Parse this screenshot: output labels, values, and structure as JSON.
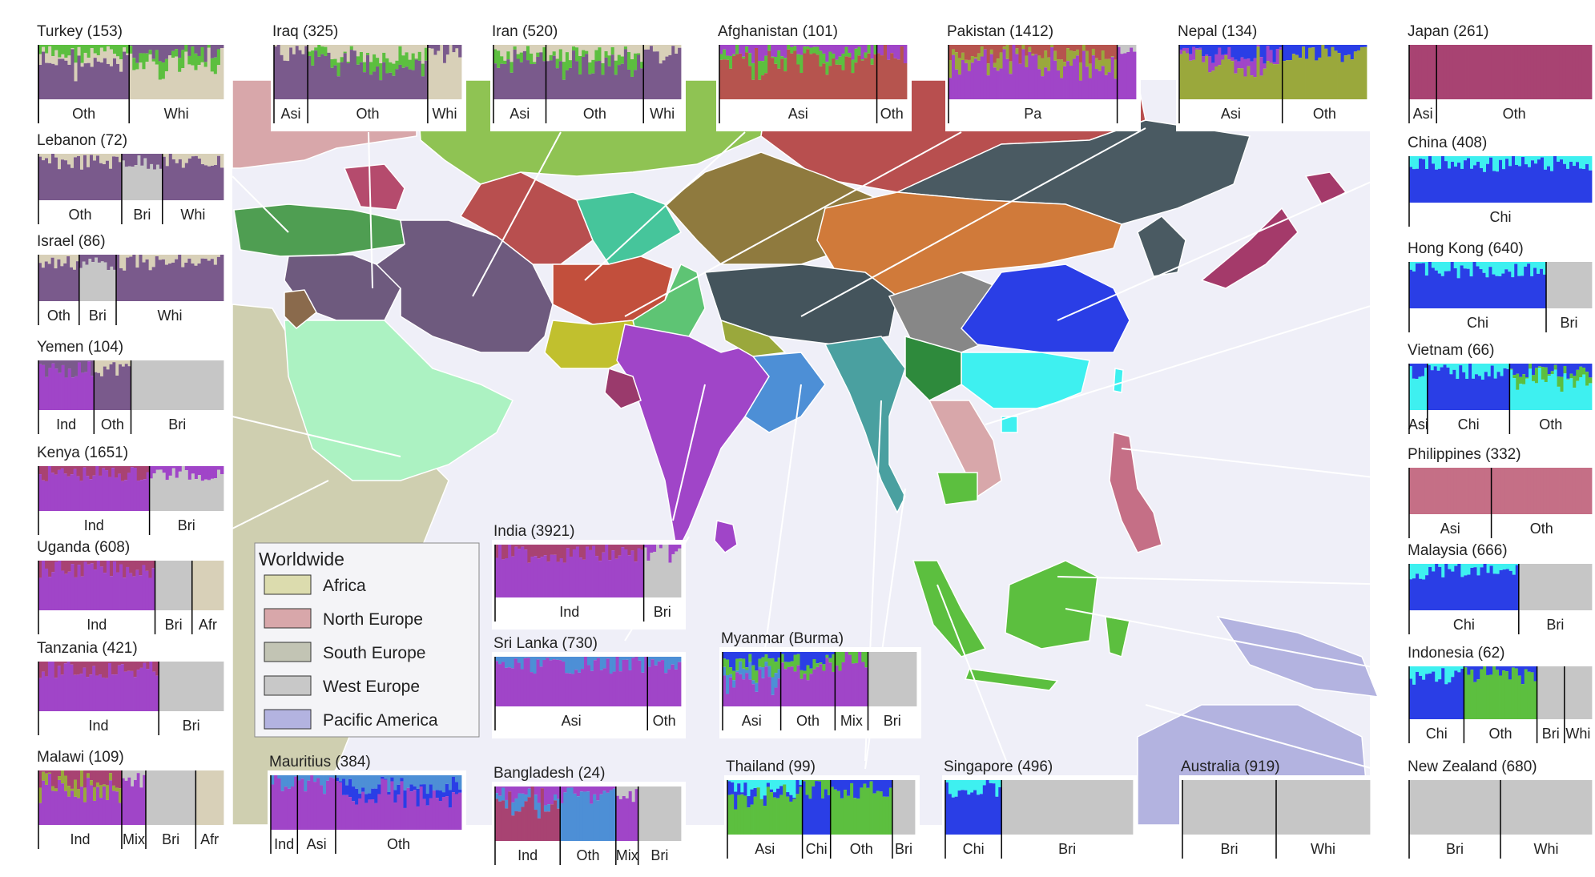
{
  "chart_data": {
    "type": "stacked-bar-grid",
    "legend": {
      "title": "Worldwide",
      "placement": "center-left",
      "items": [
        {
          "label": "Africa",
          "color": "#dcdcae"
        },
        {
          "label": "North Europe",
          "color": "#d8a7aa"
        },
        {
          "label": "South Europe",
          "color": "#c2c4b4"
        },
        {
          "label": "West Europe",
          "color": "#c8c8c8"
        },
        {
          "label": "Pacific America",
          "color": "#b3b3e0"
        }
      ]
    },
    "palette": {
      "purple": "#a045c8",
      "violet": "#7a5a8c",
      "crimson": "#a84372",
      "blue": "#2a3ee6",
      "cyan": "#3ef0f0",
      "green": "#5cbf3f",
      "olive": "#9aa83c",
      "brown": "#b6544e",
      "grey": "#c6c6c6",
      "beige": "#d8d0b8",
      "sky": "#4d8fd6",
      "pink": "#c56f86",
      "darkgreen": "#2e8a3c",
      "slate": "#4e5c66",
      "orange": "#d07a3a",
      "lime": "#8ac24a"
    },
    "panels": [
      {
        "country": "Turkey",
        "n": 153,
        "title": "Turkey (153)",
        "groups": [
          {
            "label": "",
            "share": 0.0,
            "colors": []
          },
          {
            "label": "Oth",
            "share": 0.49,
            "colors": [
              "violet",
              "green",
              "beige"
            ]
          },
          {
            "label": "Whi",
            "share": 0.51,
            "colors": [
              "beige",
              "violet",
              "green"
            ]
          }
        ]
      },
      {
        "country": "Iraq",
        "n": 325,
        "title": "Iraq (325)",
        "groups": [
          {
            "label": "Asi",
            "share": 0.18,
            "colors": [
              "violet",
              "beige"
            ]
          },
          {
            "label": "Oth",
            "share": 0.64,
            "colors": [
              "violet",
              "beige",
              "green"
            ]
          },
          {
            "label": "Whi",
            "share": 0.18,
            "colors": [
              "beige",
              "violet"
            ]
          }
        ]
      },
      {
        "country": "Iran",
        "n": 520,
        "title": "Iran (520)",
        "groups": [
          {
            "label": "Asi",
            "share": 0.28,
            "colors": [
              "violet",
              "beige",
              "green"
            ]
          },
          {
            "label": "Oth",
            "share": 0.52,
            "colors": [
              "violet",
              "beige",
              "green"
            ]
          },
          {
            "label": "Whi",
            "share": 0.2,
            "colors": [
              "violet",
              "beige"
            ]
          }
        ]
      },
      {
        "country": "Afghanistan",
        "n": 101,
        "title": "Afghanistan (101)",
        "groups": [
          {
            "label": "Asi",
            "share": 0.84,
            "colors": [
              "brown",
              "purple",
              "green"
            ]
          },
          {
            "label": "Oth",
            "share": 0.16,
            "colors": [
              "brown",
              "purple"
            ]
          }
        ]
      },
      {
        "country": "Pakistan",
        "n": 1412,
        "title": "Pakistan (1412)",
        "groups": [
          {
            "label": "Pa",
            "share": 0.9,
            "colors": [
              "purple",
              "brown",
              "olive"
            ]
          },
          {
            "label": "",
            "share": 0.1,
            "colors": [
              "purple",
              "grey"
            ]
          }
        ]
      },
      {
        "country": "Nepal",
        "n": 134,
        "title": "Nepal (134)",
        "groups": [
          {
            "label": "Asi",
            "share": 0.55,
            "colors": [
              "olive",
              "blue",
              "purple"
            ]
          },
          {
            "label": "Oth",
            "share": 0.45,
            "colors": [
              "olive",
              "blue"
            ]
          }
        ]
      },
      {
        "country": "Japan",
        "n": 261,
        "title": "Japan (261)",
        "groups": [
          {
            "label": "Asi",
            "share": 0.15,
            "colors": [
              "crimson"
            ]
          },
          {
            "label": "Oth",
            "share": 0.85,
            "colors": [
              "crimson"
            ]
          }
        ]
      },
      {
        "country": "Lebanon",
        "n": 72,
        "title": "Lebanon (72)",
        "groups": [
          {
            "label": "Oth",
            "share": 0.45,
            "colors": [
              "violet",
              "beige"
            ]
          },
          {
            "label": "Bri",
            "share": 0.22,
            "colors": [
              "grey",
              "violet"
            ]
          },
          {
            "label": "Whi",
            "share": 0.33,
            "colors": [
              "violet",
              "beige"
            ]
          }
        ]
      },
      {
        "country": "Israel",
        "n": 86,
        "title": "Israel (86)",
        "groups": [
          {
            "label": "Oth",
            "share": 0.22,
            "colors": [
              "violet",
              "beige"
            ]
          },
          {
            "label": "Bri",
            "share": 0.2,
            "colors": [
              "grey",
              "violet"
            ]
          },
          {
            "label": "Whi",
            "share": 0.58,
            "colors": [
              "violet",
              "beige"
            ]
          }
        ]
      },
      {
        "country": "Yemen",
        "n": 104,
        "title": "Yemen (104)",
        "groups": [
          {
            "label": "Ind",
            "share": 0.3,
            "colors": [
              "purple",
              "violet"
            ]
          },
          {
            "label": "Oth",
            "share": 0.2,
            "colors": [
              "violet",
              "beige"
            ]
          },
          {
            "label": "Bri",
            "share": 0.5,
            "colors": [
              "grey"
            ]
          }
        ]
      },
      {
        "country": "Kenya",
        "n": 1651,
        "title": "Kenya (1651)",
        "groups": [
          {
            "label": "Ind",
            "share": 0.6,
            "colors": [
              "purple",
              "crimson"
            ]
          },
          {
            "label": "Bri",
            "share": 0.4,
            "colors": [
              "grey",
              "purple"
            ]
          }
        ]
      },
      {
        "country": "Uganda",
        "n": 608,
        "title": "Uganda (608)",
        "groups": [
          {
            "label": "Ind",
            "share": 0.63,
            "colors": [
              "purple",
              "crimson"
            ]
          },
          {
            "label": "Bri",
            "share": 0.2,
            "colors": [
              "grey"
            ]
          },
          {
            "label": "Afr",
            "share": 0.17,
            "colors": [
              "beige"
            ]
          }
        ]
      },
      {
        "country": "Tanzania",
        "n": 421,
        "title": "Tanzania (421)",
        "groups": [
          {
            "label": "Ind",
            "share": 0.65,
            "colors": [
              "purple",
              "crimson"
            ]
          },
          {
            "label": "Bri",
            "share": 0.35,
            "colors": [
              "grey"
            ]
          }
        ]
      },
      {
        "country": "Malawi",
        "n": 109,
        "title": "Malawi (109)",
        "groups": [
          {
            "label": "Ind",
            "share": 0.45,
            "colors": [
              "purple",
              "crimson",
              "olive"
            ]
          },
          {
            "label": "Mix",
            "share": 0.13,
            "colors": [
              "purple",
              "grey"
            ]
          },
          {
            "label": "Bri",
            "share": 0.27,
            "colors": [
              "grey"
            ]
          },
          {
            "label": "Afr",
            "share": 0.15,
            "colors": [
              "beige"
            ]
          }
        ]
      },
      {
        "country": "Mauritius",
        "n": 384,
        "title": "Mauritius (384)",
        "groups": [
          {
            "label": "Ind",
            "share": 0.14,
            "colors": [
              "purple",
              "sky"
            ]
          },
          {
            "label": "Asi",
            "share": 0.2,
            "colors": [
              "purple",
              "sky"
            ]
          },
          {
            "label": "Oth",
            "share": 0.66,
            "colors": [
              "purple",
              "sky",
              "blue"
            ]
          }
        ]
      },
      {
        "country": "India",
        "n": 3921,
        "title": "India (3921)",
        "groups": [
          {
            "label": "Ind",
            "share": 0.8,
            "colors": [
              "purple",
              "crimson"
            ]
          },
          {
            "label": "Bri",
            "share": 0.2,
            "colors": [
              "grey",
              "purple"
            ]
          }
        ]
      },
      {
        "country": "Sri Lanka",
        "n": 730,
        "title": "Sri Lanka (730)",
        "groups": [
          {
            "label": "Asi",
            "share": 0.82,
            "colors": [
              "purple",
              "sky"
            ]
          },
          {
            "label": "Oth",
            "share": 0.18,
            "colors": [
              "purple",
              "sky"
            ]
          }
        ]
      },
      {
        "country": "Bangladesh",
        "n": 24,
        "title": "Bangladesh (24)",
        "groups": [
          {
            "label": "Ind",
            "share": 0.35,
            "colors": [
              "crimson",
              "purple",
              "sky"
            ]
          },
          {
            "label": "Oth",
            "share": 0.3,
            "colors": [
              "sky",
              "purple"
            ]
          },
          {
            "label": "Mix",
            "share": 0.12,
            "colors": [
              "purple",
              "grey"
            ]
          },
          {
            "label": "Bri",
            "share": 0.23,
            "colors": [
              "grey"
            ]
          }
        ]
      },
      {
        "country": "Myanmar (Burma)",
        "n": null,
        "title": "Myanmar (Burma)",
        "groups": [
          {
            "label": "Asi",
            "share": 0.3,
            "colors": [
              "purple",
              "blue",
              "green",
              "sky"
            ]
          },
          {
            "label": "Oth",
            "share": 0.28,
            "colors": [
              "purple",
              "blue",
              "green"
            ]
          },
          {
            "label": "Mix",
            "share": 0.17,
            "colors": [
              "purple",
              "green"
            ]
          },
          {
            "label": "Bri",
            "share": 0.25,
            "colors": [
              "grey"
            ]
          }
        ]
      },
      {
        "country": "Thailand",
        "n": 99,
        "title": "Thailand (99)",
        "groups": [
          {
            "label": "Asi",
            "share": 0.4,
            "colors": [
              "green",
              "cyan",
              "blue"
            ]
          },
          {
            "label": "Chi",
            "share": 0.15,
            "colors": [
              "blue",
              "green"
            ]
          },
          {
            "label": "Oth",
            "share": 0.33,
            "colors": [
              "green",
              "blue"
            ]
          },
          {
            "label": "Bri",
            "share": 0.12,
            "colors": [
              "grey"
            ]
          }
        ]
      },
      {
        "country": "Singapore",
        "n": 496,
        "title": "Singapore (496)",
        "groups": [
          {
            "label": "Chi",
            "share": 0.3,
            "colors": [
              "blue",
              "cyan"
            ]
          },
          {
            "label": "Bri",
            "share": 0.7,
            "colors": [
              "grey"
            ]
          }
        ]
      },
      {
        "country": "Australia",
        "n": 919,
        "title": "Australia (919)",
        "groups": [
          {
            "label": "Bri",
            "share": 0.5,
            "colors": [
              "grey"
            ]
          },
          {
            "label": "Whi",
            "share": 0.5,
            "colors": [
              "grey"
            ]
          }
        ]
      },
      {
        "country": "China",
        "n": 408,
        "title": "China (408)",
        "groups": [
          {
            "label": "Chi",
            "share": 1.0,
            "colors": [
              "blue",
              "cyan"
            ]
          }
        ]
      },
      {
        "country": "Hong Kong",
        "n": 640,
        "title": "Hong Kong (640)",
        "groups": [
          {
            "label": "Chi",
            "share": 0.75,
            "colors": [
              "blue",
              "cyan"
            ]
          },
          {
            "label": "Bri",
            "share": 0.25,
            "colors": [
              "grey"
            ]
          }
        ]
      },
      {
        "country": "Vietnam",
        "n": 66,
        "title": "Vietnam (66)",
        "groups": [
          {
            "label": "Asi",
            "share": 0.1,
            "colors": [
              "cyan",
              "blue"
            ]
          },
          {
            "label": "Chi",
            "share": 0.45,
            "colors": [
              "blue",
              "cyan"
            ]
          },
          {
            "label": "Oth",
            "share": 0.45,
            "colors": [
              "cyan",
              "blue",
              "green"
            ]
          }
        ]
      },
      {
        "country": "Philippines",
        "n": 332,
        "title": "Philippines (332)",
        "groups": [
          {
            "label": "Asi",
            "share": 0.45,
            "colors": [
              "pink"
            ]
          },
          {
            "label": "Oth",
            "share": 0.55,
            "colors": [
              "pink"
            ]
          }
        ]
      },
      {
        "country": "Malaysia",
        "n": 666,
        "title": "Malaysia (666)",
        "groups": [
          {
            "label": "Chi",
            "share": 0.6,
            "colors": [
              "blue",
              "cyan"
            ]
          },
          {
            "label": "Bri",
            "share": 0.4,
            "colors": [
              "grey"
            ]
          }
        ]
      },
      {
        "country": "Indonesia",
        "n": 62,
        "title": "Indonesia (62)",
        "groups": [
          {
            "label": "Chi",
            "share": 0.3,
            "colors": [
              "blue",
              "cyan"
            ]
          },
          {
            "label": "Oth",
            "share": 0.4,
            "colors": [
              "green",
              "blue"
            ]
          },
          {
            "label": "Bri",
            "share": 0.15,
            "colors": [
              "grey"
            ]
          },
          {
            "label": "Whi",
            "share": 0.15,
            "colors": [
              "grey"
            ]
          }
        ]
      },
      {
        "country": "New Zealand",
        "n": 680,
        "title": "New Zealand (680)",
        "groups": [
          {
            "label": "Bri",
            "share": 0.5,
            "colors": [
              "grey"
            ]
          },
          {
            "label": "Whi",
            "share": 0.5,
            "colors": [
              "grey"
            ]
          }
        ]
      }
    ]
  }
}
